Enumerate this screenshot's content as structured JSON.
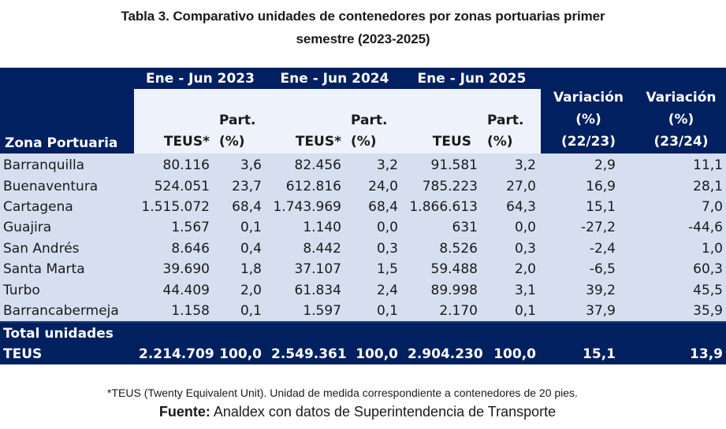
{
  "title": {
    "line1": "Tabla 3. Comparativo unidades de contenedores por zonas portuarias primer",
    "line2": "semestre (2023-2025)"
  },
  "colors": {
    "header_navy": "#002060",
    "header_light": "#eef2fa",
    "row_background": "#d6dff0"
  },
  "table": {
    "header": {
      "zone": "Zona Portuaria",
      "periods": [
        "Ene - Jun 2023",
        "Ene - Jun 2024",
        "Ene - Jun 2025"
      ],
      "teus": [
        "TEUS*",
        "TEUS*",
        "TEUS"
      ],
      "part_line1": "Part.",
      "part_line2": "(%)",
      "variations": [
        {
          "line1": "Variación",
          "line2": "(%)",
          "line3": "(22/23)"
        },
        {
          "line1": "Variación",
          "line2": "(%)",
          "line3": "(23/24)"
        }
      ]
    },
    "rows": [
      {
        "zone": "Barranquilla",
        "teus_2023": "80.116",
        "part_2023": "3,6",
        "teus_2024": "82.456",
        "part_2024": "3,2",
        "teus_2025": "91.581",
        "part_2025": "3,2",
        "var_22_23": "2,9",
        "var_23_24": "11,1"
      },
      {
        "zone": "Buenaventura",
        "teus_2023": "524.051",
        "part_2023": "23,7",
        "teus_2024": "612.816",
        "part_2024": "24,0",
        "teus_2025": "785.223",
        "part_2025": "27,0",
        "var_22_23": "16,9",
        "var_23_24": "28,1"
      },
      {
        "zone": "Cartagena",
        "teus_2023": "1.515.072",
        "part_2023": "68,4",
        "teus_2024": "1.743.969",
        "part_2024": "68,4",
        "teus_2025": "1.866.613",
        "part_2025": "64,3",
        "var_22_23": "15,1",
        "var_23_24": "7,0"
      },
      {
        "zone": "Guajira",
        "teus_2023": "1.567",
        "part_2023": "0,1",
        "teus_2024": "1.140",
        "part_2024": "0,0",
        "teus_2025": "631",
        "part_2025": "0,0",
        "var_22_23": "-27,2",
        "var_23_24": "-44,6"
      },
      {
        "zone": "San Andrés",
        "teus_2023": "8.646",
        "part_2023": "0,4",
        "teus_2024": "8.442",
        "part_2024": "0,3",
        "teus_2025": "8.526",
        "part_2025": "0,3",
        "var_22_23": "-2,4",
        "var_23_24": "1,0"
      },
      {
        "zone": "Santa Marta",
        "teus_2023": "39.690",
        "part_2023": "1,8",
        "teus_2024": "37.107",
        "part_2024": "1,5",
        "teus_2025": "59.488",
        "part_2025": "2,0",
        "var_22_23": "-6,5",
        "var_23_24": "60,3"
      },
      {
        "zone": "Turbo",
        "teus_2023": "44.409",
        "part_2023": "2,0",
        "teus_2024": "61.834",
        "part_2024": "2,4",
        "teus_2025": "89.998",
        "part_2025": "3,1",
        "var_22_23": "39,2",
        "var_23_24": "45,5"
      },
      {
        "zone": "Barrancabermeja",
        "teus_2023": "1.158",
        "part_2023": "0,1",
        "teus_2024": "1.597",
        "part_2024": "0,1",
        "teus_2025": "2.170",
        "part_2025": "0,1",
        "var_22_23": "37,9",
        "var_23_24": "35,9"
      }
    ],
    "total": {
      "label_line1": "Total unidades",
      "label_line2": "TEUS",
      "teus_2023": "2.214.709",
      "part_2023": "100,0",
      "teus_2024": "2.549.361",
      "part_2024": "100,0",
      "teus_2025": "2.904.230",
      "part_2025": "100,0",
      "var_22_23": "15,1",
      "var_23_24": "13,9"
    }
  },
  "footnote": "*TEUS (Twenty Equivalent Unit). Unidad de medida correspondiente a contenedores de 20 pies.",
  "source": {
    "label": "Fuente:",
    "text": " Analdex con datos de Superintendencia de Transporte"
  }
}
